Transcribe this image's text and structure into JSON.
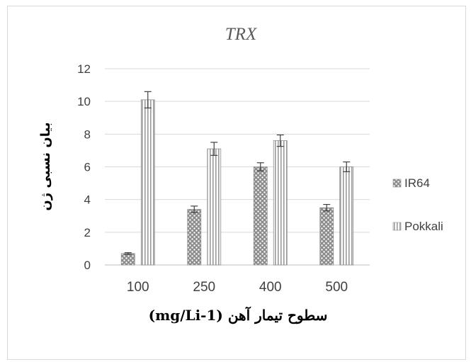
{
  "chart_data": {
    "type": "bar",
    "title": "TRX",
    "xlabel": "سطوح تیمار آهن (mg/Li-1)",
    "ylabel": "بیان نسبی ژن",
    "categories": [
      "100",
      "250",
      "400",
      "500"
    ],
    "ylim": [
      0,
      12
    ],
    "yticks": [
      "0",
      "2",
      "4",
      "6",
      "8",
      "10",
      "12"
    ],
    "grid": true,
    "legend_position": "right",
    "series": [
      {
        "name": "IR64",
        "values": [
          0.7,
          3.4,
          6.0,
          3.5
        ],
        "errors": [
          0.05,
          0.2,
          0.25,
          0.2
        ],
        "pattern": "dots",
        "color": "#9a9a9a"
      },
      {
        "name": "Pokkali",
        "values": [
          10.1,
          7.1,
          7.6,
          6.0
        ],
        "errors": [
          0.5,
          0.4,
          0.35,
          0.3
        ],
        "pattern": "vertical-stripes",
        "color": "#9a9a9a"
      }
    ]
  }
}
